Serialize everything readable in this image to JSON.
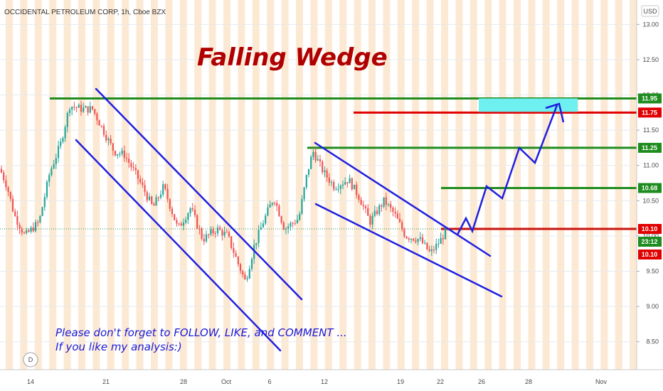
{
  "header": {
    "symbol_title": "OCCIDENTAL PETROLEUM CORP, 1h, Cboe BZX",
    "currency": "USD"
  },
  "annotations": {
    "headline": "Falling Wedge",
    "note_line1": "Please don't forget to FOLLOW, LIKE, and COMMENT ...",
    "note_line2": "If you like my analysis:)",
    "watermark_letter": "D"
  },
  "chart_data": {
    "type": "candlestick",
    "title": "Falling Wedge",
    "ylim": [
      8.3,
      13.25
    ],
    "y_ticks": [
      8.5,
      9.0,
      9.5,
      10.0,
      10.5,
      11.0,
      11.5,
      12.0,
      12.5,
      13.0
    ],
    "x_tick_labels": [
      "14",
      "21",
      "28",
      "Oct",
      "6",
      "12",
      "19",
      "22",
      "26",
      "28",
      "Nov"
    ],
    "colors": {
      "up": "#26a69a",
      "down": "#ef5350",
      "trend": "#1f1fe0",
      "support": "#1e8c1e",
      "resistance": "#e00000",
      "target_box": "#6ff0f0"
    },
    "levels": [
      {
        "value": 11.95,
        "label": "11.95",
        "color": "#1e8c1e"
      },
      {
        "value": 11.75,
        "label": "11.75",
        "color": "#e00000"
      },
      {
        "value": 11.25,
        "label": "11.25",
        "color": "#1e8c1e"
      },
      {
        "value": 10.68,
        "label": "10.68",
        "color": "#1e8c1e"
      },
      {
        "value": 10.1,
        "label": "10.10",
        "color": "#e00000"
      }
    ],
    "price_badges": [
      {
        "value": 10.1,
        "label": "10.10",
        "color": "#1e8c1e"
      },
      {
        "value": 9.92,
        "label": "23:12",
        "color": "#1e8c1e"
      },
      {
        "value": 9.74,
        "label": "10.10",
        "color": "#e00000"
      }
    ],
    "target_zone": {
      "low": 11.76,
      "high": 11.95
    },
    "last_price": 10.1
  }
}
